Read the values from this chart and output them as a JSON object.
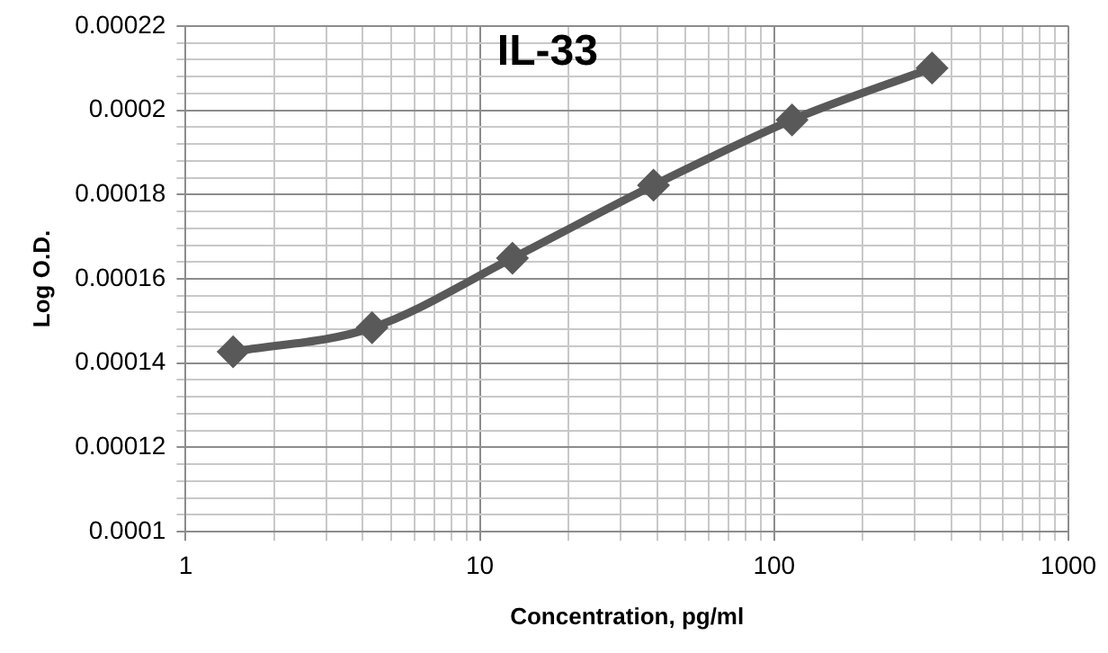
{
  "chart_data": {
    "type": "line",
    "title": "IL-33",
    "xlabel": "Concentration, pg/ml",
    "ylabel": "Log O.D.",
    "log": "x",
    "grid": true,
    "marker": "diamond",
    "line_style": "solid",
    "x": [
      1.45,
      4.3,
      12.9,
      38.9,
      115,
      344
    ],
    "series": [
      {
        "color": "#595959",
        "values": [
          0.0001427,
          0.0001484,
          0.0001649,
          0.0001822,
          0.0001977,
          0.00021
        ]
      }
    ],
    "xlim": [
      1,
      1000
    ],
    "xticks": [
      1,
      {
        "value": 2,
        "label": null
      },
      {
        "value": 3,
        "label": null
      },
      {
        "value": 4,
        "label": null
      },
      {
        "value": 5,
        "label": null
      },
      {
        "value": 6,
        "label": null
      },
      {
        "value": 7,
        "label": null
      },
      {
        "value": 8,
        "label": null
      },
      {
        "value": 9,
        "label": null
      },
      10,
      {
        "value": 20,
        "label": null
      },
      {
        "value": 30,
        "label": null
      },
      {
        "value": 40,
        "label": null
      },
      {
        "value": 50,
        "label": null
      },
      {
        "value": 60,
        "label": null
      },
      {
        "value": 70,
        "label": null
      },
      {
        "value": 80,
        "label": null
      },
      {
        "value": 90,
        "label": null
      },
      100,
      {
        "value": 200,
        "label": null
      },
      {
        "value": 300,
        "label": null
      },
      {
        "value": 400,
        "label": null
      },
      {
        "value": 500,
        "label": null
      },
      {
        "value": 600,
        "label": null
      },
      {
        "value": 700,
        "label": null
      },
      {
        "value": 800,
        "label": null
      },
      {
        "value": 900,
        "label": null
      },
      1000
    ],
    "ylim": [
      0.0001,
      0.00022
    ],
    "yticks": [
      0.0001,
      {
        "value": 0.000104,
        "label": null
      },
      {
        "value": 0.000108,
        "label": null
      },
      {
        "value": 0.000112,
        "label": null
      },
      {
        "value": 0.000116,
        "label": null
      },
      0.00012,
      {
        "value": 0.000124,
        "label": null
      },
      {
        "value": 0.000128,
        "label": null
      },
      {
        "value": 0.000132,
        "label": null
      },
      {
        "value": 0.000136,
        "label": null
      },
      0.00014,
      {
        "value": 0.000144,
        "label": null
      },
      {
        "value": 0.000148,
        "label": null
      },
      {
        "value": 0.000152,
        "label": null
      },
      {
        "value": 0.000156,
        "label": null
      },
      0.00016,
      {
        "value": 0.000164,
        "label": null
      },
      {
        "value": 0.000168,
        "label": null
      },
      {
        "value": 0.000172,
        "label": null
      },
      {
        "value": 0.000176,
        "label": null
      },
      0.00018,
      {
        "value": 0.000184,
        "label": null
      },
      {
        "value": 0.000188,
        "label": null
      },
      {
        "value": 0.000192,
        "label": null
      },
      {
        "value": 0.000196,
        "label": null
      },
      0.0002,
      {
        "value": 0.000204,
        "label": null
      },
      {
        "value": 0.000208,
        "label": null
      },
      {
        "value": 0.000212,
        "label": null
      },
      {
        "value": 0.000216,
        "label": null
      },
      0.00022
    ]
  }
}
